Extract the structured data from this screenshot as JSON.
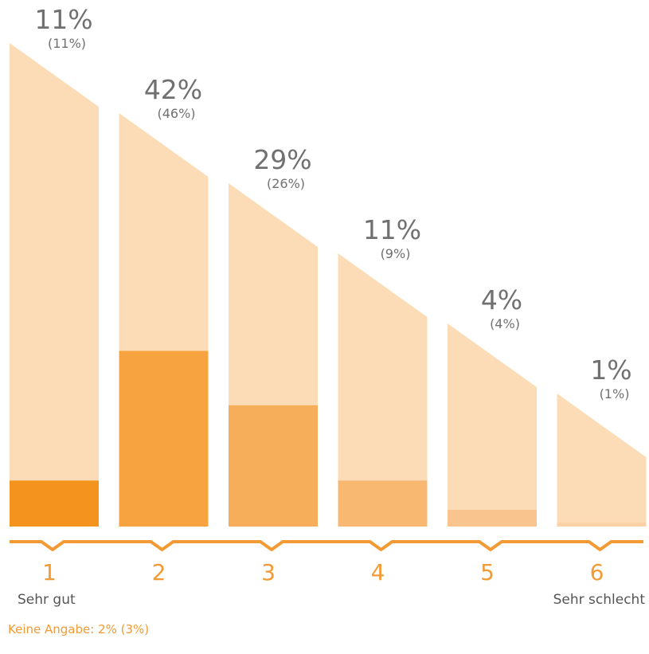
{
  "chart_data": {
    "type": "bar",
    "categories": [
      "1",
      "2",
      "3",
      "4",
      "5",
      "6"
    ],
    "scale_labels": {
      "first": "Sehr gut",
      "last": "Sehr schlecht"
    },
    "series": [
      {
        "values": [
          11,
          42,
          29,
          11,
          4,
          1
        ]
      },
      {
        "values": [
          11,
          46,
          26,
          9,
          4,
          1
        ]
      }
    ],
    "value_labels": [
      "11%",
      "42%",
      "29%",
      "11%",
      "4%",
      "1%"
    ],
    "comparison_labels": [
      "(11%)",
      "(46%)",
      "(26%)",
      "(9%)",
      "(4%)",
      "(1%)"
    ],
    "ylim": [
      0,
      100
    ],
    "grid": false,
    "colors": {
      "background_band": "#fcdcb6",
      "bars": [
        "#f4931e",
        "#f7a440",
        "#f7ae5a",
        "#f8b872",
        "#f9c48d",
        "#fad2a6"
      ],
      "axis_line": "#f39a34",
      "category_text": "#f39a34",
      "value_text": "#707070",
      "scale_text": "#555555"
    }
  },
  "footnote": "Keine Angabe: 2% (3%)"
}
